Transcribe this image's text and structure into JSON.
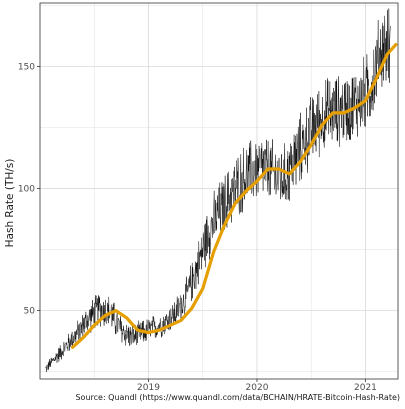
{
  "chart_data": {
    "type": "line",
    "title": "",
    "xlabel": "",
    "ylabel": "Hash Rate (TH/s)",
    "caption": "Source: Quandl (https://www.quandl.com/data/BCHAIN/HRATE-Bitcoin-Hash-Rate)",
    "x_ticks": [
      {
        "value": 2019,
        "label": "2019"
      },
      {
        "value": 2020,
        "label": "2020"
      },
      {
        "value": 2021,
        "label": "2021"
      }
    ],
    "y_ticks": [
      {
        "value": 50,
        "label": "50"
      },
      {
        "value": 100,
        "label": "100"
      },
      {
        "value": 150,
        "label": "150"
      }
    ],
    "xlim": [
      2018.0,
      2021.3
    ],
    "ylim": [
      22,
      176
    ],
    "grid": true,
    "legend": "none",
    "colors": {
      "raw": "#000000",
      "smooth": "#E69F00",
      "grid": "#d9d9d9",
      "panel_border": "#333333",
      "background": "#ffffff"
    },
    "series": [
      {
        "key": "daily",
        "style": "thin-black-noisy",
        "x": [
          2018.05,
          2018.15,
          2018.25,
          2018.35,
          2018.45,
          2018.55,
          2018.65,
          2018.75,
          2018.85,
          2018.95,
          2019.05,
          2019.15,
          2019.25,
          2019.35,
          2019.45,
          2019.55,
          2019.65,
          2019.75,
          2019.85,
          2019.95,
          2020.05,
          2020.15,
          2020.25,
          2020.35,
          2020.45,
          2020.55,
          2020.65,
          2020.75,
          2020.85,
          2020.95,
          2021.05,
          2021.15
        ],
        "y": [
          26,
          31,
          36,
          41,
          47,
          51,
          49,
          42,
          39,
          41,
          43,
          45,
          49,
          56,
          68,
          82,
          90,
          97,
          103,
          107,
          109,
          106,
          104,
          112,
          120,
          127,
          131,
          132,
          133,
          136,
          142,
          158
        ],
        "amplitude": [
          2,
          3,
          4,
          5,
          6,
          7,
          7,
          6,
          5,
          5,
          5,
          5,
          6,
          7,
          9,
          11,
          12,
          12,
          13,
          13,
          13,
          13,
          13,
          14,
          14,
          14,
          14,
          14,
          14,
          15,
          15,
          16
        ]
      },
      {
        "key": "smoothed",
        "style": "thick-orange",
        "x": [
          2018.3,
          2018.4,
          2018.5,
          2018.6,
          2018.7,
          2018.8,
          2018.9,
          2019.0,
          2019.1,
          2019.2,
          2019.3,
          2019.4,
          2019.5,
          2019.6,
          2019.7,
          2019.8,
          2019.9,
          2020.0,
          2020.1,
          2020.2,
          2020.3,
          2020.4,
          2020.5,
          2020.6,
          2020.7,
          2020.8,
          2020.9,
          2021.0,
          2021.1,
          2021.2,
          2021.28
        ],
        "y": [
          35,
          39,
          44,
          48,
          50,
          47,
          42,
          41,
          42,
          44,
          46,
          51,
          59,
          74,
          85,
          94,
          99,
          103,
          108,
          108,
          106,
          111,
          118,
          126,
          131,
          131,
          133,
          136,
          145,
          155,
          159
        ]
      }
    ]
  }
}
